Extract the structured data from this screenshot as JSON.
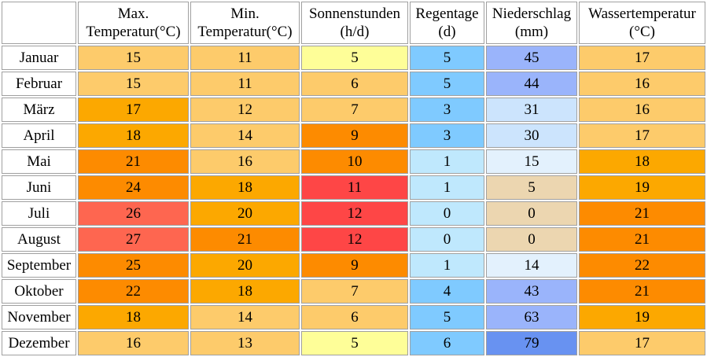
{
  "header": {
    "max_temp": [
      "Max.",
      "Temperatur(°C)"
    ],
    "min_temp": [
      "Min.",
      "Temperatur(°C)"
    ],
    "sun": [
      "Sonnenstunden",
      "(h/d)"
    ],
    "rain_days": [
      "Regentage",
      "(d)"
    ],
    "precip": [
      "Niederschlag",
      "(mm)"
    ],
    "water": [
      "Wassertemperatur",
      "(°C)"
    ]
  },
  "rows": [
    {
      "month": "Januar",
      "max": "15",
      "min": "11",
      "sun": "5",
      "rain": "5",
      "precip": "45",
      "water": "17"
    },
    {
      "month": "Februar",
      "max": "15",
      "min": "11",
      "sun": "6",
      "rain": "5",
      "precip": "44",
      "water": "16"
    },
    {
      "month": "März",
      "max": "17",
      "min": "12",
      "sun": "7",
      "rain": "3",
      "precip": "31",
      "water": "16"
    },
    {
      "month": "April",
      "max": "18",
      "min": "14",
      "sun": "9",
      "rain": "3",
      "precip": "30",
      "water": "17"
    },
    {
      "month": "Mai",
      "max": "21",
      "min": "16",
      "sun": "10",
      "rain": "1",
      "precip": "15",
      "water": "18"
    },
    {
      "month": "Juni",
      "max": "24",
      "min": "18",
      "sun": "11",
      "rain": "1",
      "precip": "5",
      "water": "19"
    },
    {
      "month": "Juli",
      "max": "26",
      "min": "20",
      "sun": "12",
      "rain": "0",
      "precip": "0",
      "water": "21"
    },
    {
      "month": "August",
      "max": "27",
      "min": "21",
      "sun": "12",
      "rain": "0",
      "precip": "0",
      "water": "21"
    },
    {
      "month": "September",
      "max": "25",
      "min": "20",
      "sun": "9",
      "rain": "1",
      "precip": "14",
      "water": "22"
    },
    {
      "month": "Oktober",
      "max": "22",
      "min": "18",
      "sun": "7",
      "rain": "4",
      "precip": "43",
      "water": "21"
    },
    {
      "month": "November",
      "max": "18",
      "min": "14",
      "sun": "6",
      "rain": "5",
      "precip": "63",
      "water": "19"
    },
    {
      "month": "Dezember",
      "max": "16",
      "min": "13",
      "sun": "5",
      "rain": "6",
      "precip": "79",
      "water": "17"
    }
  ],
  "colors": {
    "temp": {
      "11": "#fdcb6b",
      "12": "#fdcb6b",
      "13": "#fdcb6b",
      "14": "#fdcb6b",
      "15": "#fdcb6b",
      "16": "#fdcb6b",
      "17": "#fca800",
      "18": "#fca800",
      "19": "#fca800",
      "20": "#fca800",
      "21": "#fd8b00",
      "22": "#fd8b00",
      "23": "#fd8b00",
      "24": "#fd8b00",
      "25": "#fd8b00",
      "26": "#fe6650",
      "27": "#fe6650"
    },
    "sun": {
      "5": "#fefe98",
      "6": "#fdcb6b",
      "7": "#fdcb6b",
      "9": "#fd8b00",
      "10": "#fd8b00",
      "11": "#fe4646",
      "12": "#fe4646"
    },
    "rain": {
      "0": "#bfe8fd",
      "1": "#bfe8fd",
      "3": "#7fcaff",
      "4": "#7fcaff",
      "5": "#7fcaff",
      "6": "#7fcaff"
    },
    "precip": {
      "0": "#ecd6b0",
      "5": "#ecd6b0",
      "14": "#e3f1fd",
      "15": "#e3f1fd",
      "30": "#cce4fd",
      "31": "#cce4fd",
      "43": "#9ab4fb",
      "44": "#9ab4fb",
      "45": "#9ab4fb",
      "63": "#9ab4fb",
      "79": "#6892f1"
    },
    "water": {
      "16": "#fdcb6b",
      "17": "#fdcb6b",
      "18": "#fca800",
      "19": "#fca800",
      "21": "#fd8b00",
      "22": "#fd8b00"
    }
  }
}
